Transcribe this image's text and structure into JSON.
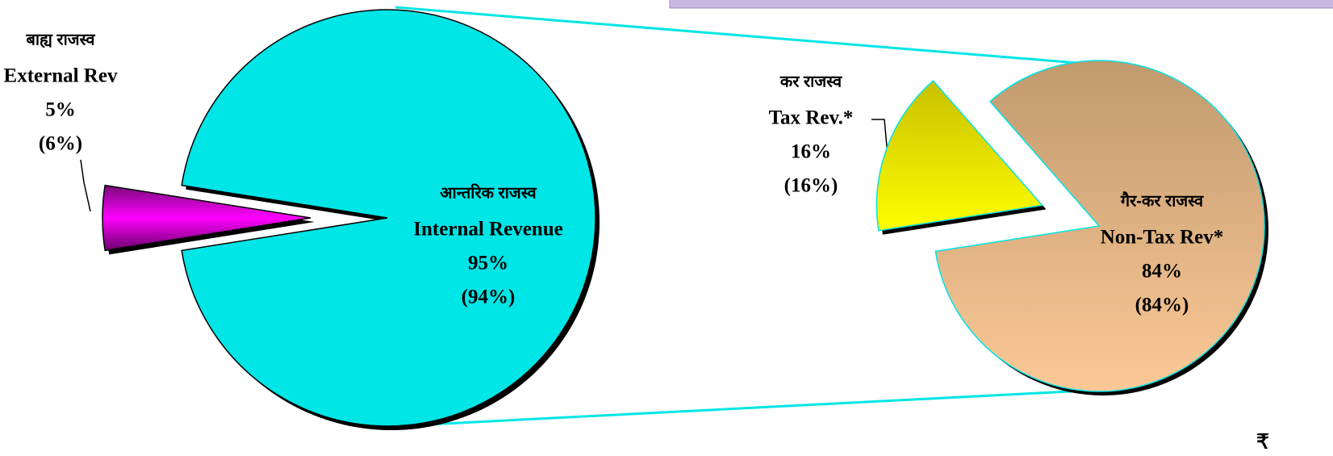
{
  "chart_data": [
    {
      "type": "pie",
      "categories": [
        "External Rev",
        "Internal Revenue"
      ],
      "labels_hi": [
        "बाह्य राजस्व",
        "आन्तरिक राजस्व"
      ],
      "values": [
        5,
        95
      ],
      "value_labels": [
        "5%",
        "95%"
      ],
      "prior_values": [
        6,
        94
      ],
      "prior_value_labels": [
        "(6%)",
        "(94%)"
      ],
      "colors": [
        "#ff00ff",
        "#00e5e5"
      ]
    },
    {
      "type": "pie",
      "categories": [
        "Tax Rev.*",
        "Non-Tax Rev*"
      ],
      "labels_hi": [
        "कर राजस्व",
        "गैर-कर राजस्व"
      ],
      "values": [
        16,
        84
      ],
      "value_labels": [
        "16%",
        "84%"
      ],
      "prior_values": [
        16,
        84
      ],
      "prior_value_labels": [
        "(16%)",
        "(84%)"
      ],
      "colors": [
        "#ffff00",
        "#f2c08e"
      ]
    }
  ],
  "footer_symbol": "₹"
}
